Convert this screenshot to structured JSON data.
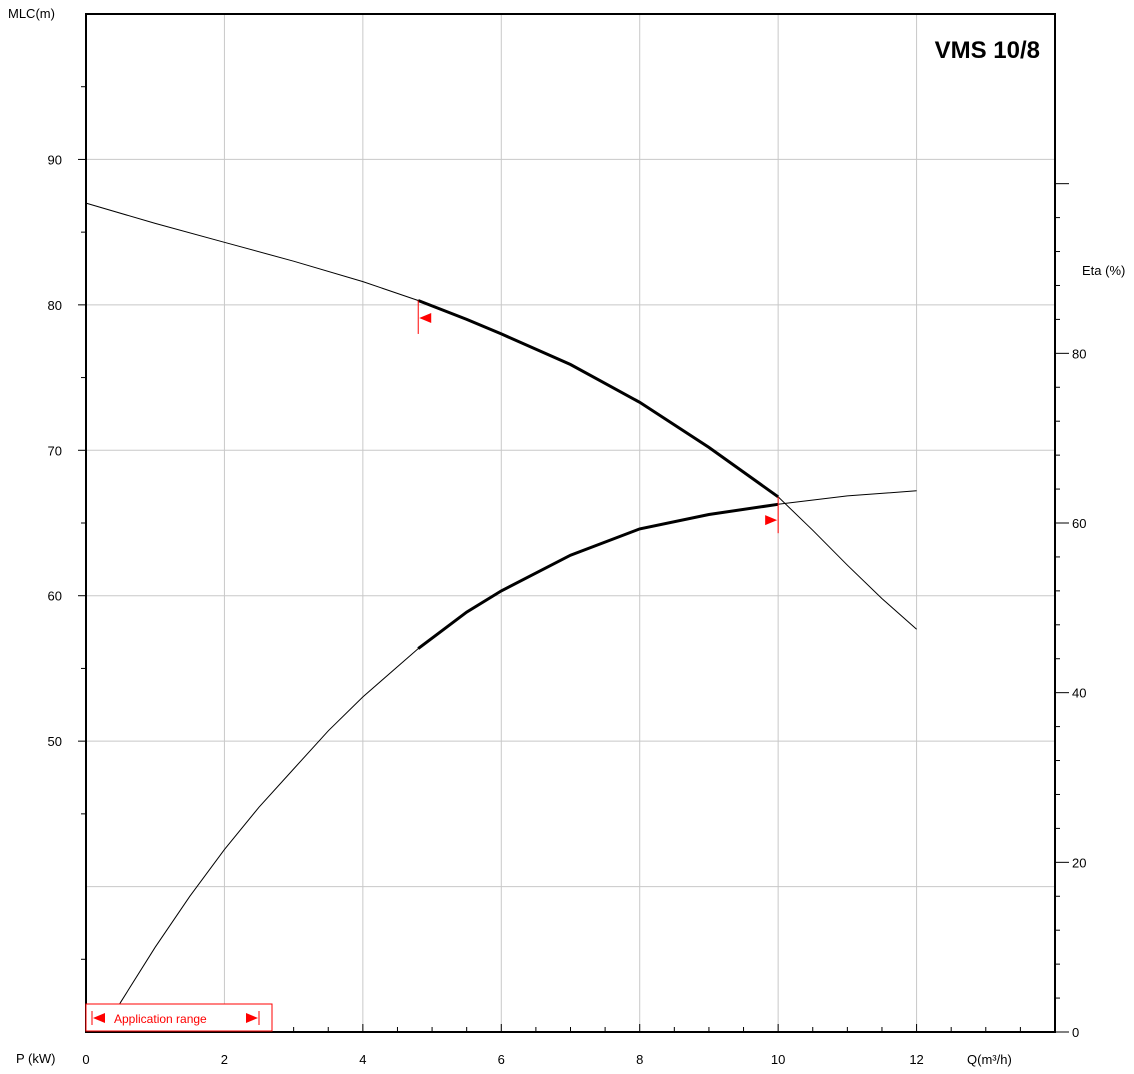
{
  "chart_data": {
    "type": "line",
    "title": "VMS 10/8",
    "xlabel": "Q(m³/h)",
    "ylabel_left": "MLC(m)",
    "ylabel_right": "Eta (%)",
    "bottom_label": "P (kW)",
    "x_ticks": [
      "0",
      "2",
      "4",
      "6",
      "8",
      "10",
      "12"
    ],
    "y_left_ticks": [
      "50",
      "60",
      "70",
      "80",
      "90"
    ],
    "y_right_ticks": [
      "0",
      "20",
      "40",
      "60",
      "80"
    ],
    "xlim": [
      0,
      14
    ],
    "ylim_left": [
      30,
      100
    ],
    "ylim_right": [
      0,
      120
    ],
    "grid": true,
    "application_range": {
      "label": "Application range",
      "q_min": 4.8,
      "q_max": 10
    },
    "series": [
      {
        "axis": "left",
        "points": [
          [
            0,
            87.0
          ],
          [
            1,
            85.6
          ],
          [
            2,
            84.3
          ],
          [
            3,
            83.0
          ],
          [
            4,
            81.6
          ],
          [
            4.8,
            80.3
          ],
          [
            5.5,
            79.0
          ],
          [
            6,
            78.0
          ],
          [
            7,
            75.9
          ],
          [
            8,
            73.3
          ],
          [
            9,
            70.2
          ],
          [
            10,
            66.8
          ],
          [
            10.5,
            64.5
          ],
          [
            11,
            62.1
          ],
          [
            11.5,
            59.8
          ],
          [
            12,
            57.7
          ]
        ]
      },
      {
        "axis": "right",
        "points": [
          [
            0.27,
            0.0
          ],
          [
            0.5,
            3.5
          ],
          [
            1,
            10.0
          ],
          [
            1.5,
            16.0
          ],
          [
            2,
            21.5
          ],
          [
            2.5,
            26.5
          ],
          [
            3,
            31.0
          ],
          [
            3.5,
            35.5
          ],
          [
            4,
            39.5
          ],
          [
            4.8,
            45.2
          ],
          [
            5.5,
            49.5
          ],
          [
            6,
            52.0
          ],
          [
            7,
            56.2
          ],
          [
            8,
            59.3
          ],
          [
            9,
            61.0
          ],
          [
            10,
            62.2
          ],
          [
            11,
            63.2
          ],
          [
            12,
            63.8
          ]
        ]
      }
    ]
  }
}
